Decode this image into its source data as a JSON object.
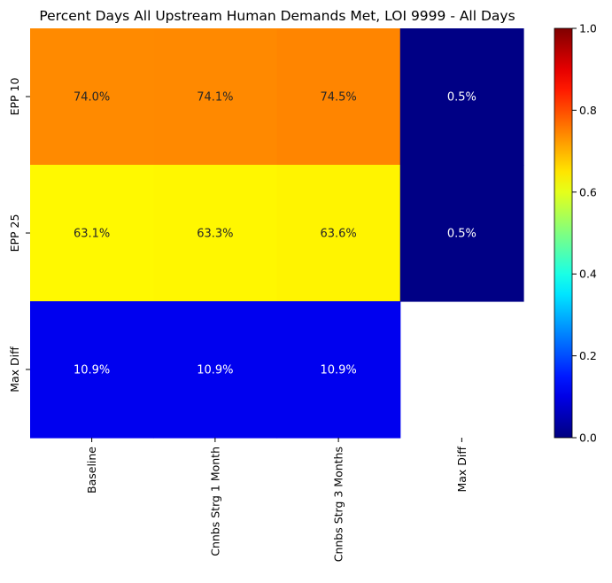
{
  "chart_data": {
    "type": "heatmap",
    "title": "Percent Days All Upstream Human Demands Met, LOI 9999 - All Days",
    "xlabel": "",
    "ylabel": "",
    "x_categories": [
      "Baseline",
      "Cnnbs Strg 1 Month",
      "Cnnbs Strg 3 Months",
      "Max Diff"
    ],
    "y_categories": [
      "EPP 10",
      "EPP 25",
      "Max Diff"
    ],
    "values": [
      [
        0.74,
        0.741,
        0.745,
        0.005
      ],
      [
        0.631,
        0.633,
        0.636,
        0.005
      ],
      [
        0.109,
        0.109,
        0.109,
        null
      ]
    ],
    "cell_labels": [
      [
        "74.0%",
        "74.1%",
        "74.5%",
        "0.5%"
      ],
      [
        "63.1%",
        "63.3%",
        "63.6%",
        "0.5%"
      ],
      [
        "10.9%",
        "10.9%",
        "10.9%",
        ""
      ]
    ],
    "colormap": "jet",
    "vmin": 0.0,
    "vmax": 1.0,
    "colorbar_ticks": [
      "0.0",
      "0.2",
      "0.4",
      "0.6",
      "0.8",
      "1.0"
    ],
    "colorbar_tick_values": [
      0.0,
      0.2,
      0.4,
      0.6,
      0.8,
      1.0
    ],
    "grid": false,
    "legend": "colorbar-right"
  }
}
